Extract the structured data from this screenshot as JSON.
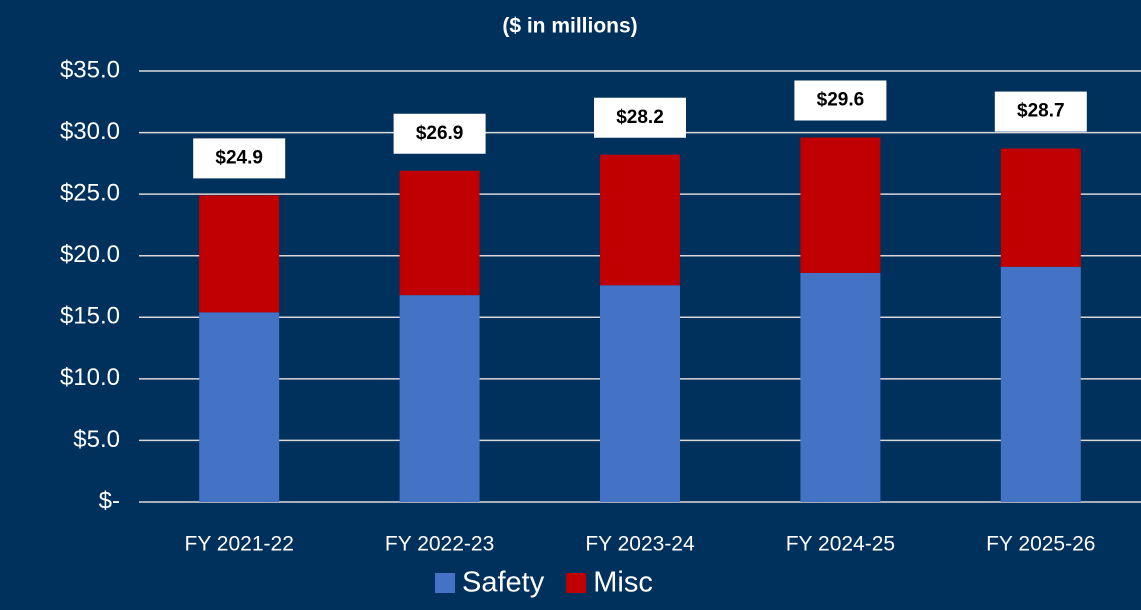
{
  "chart_data": {
    "type": "stacked_bar",
    "title": "($ in millions)",
    "categories": [
      "FY 2021-22",
      "FY 2022-23",
      "FY 2023-24",
      "FY 2024-25",
      "FY 2025-26"
    ],
    "series": [
      {
        "name": "Safety",
        "color": "#4472c4",
        "values": [
          15.4,
          16.8,
          17.6,
          18.6,
          19.1
        ]
      },
      {
        "name": "Misc",
        "color": "#c00000",
        "values": [
          9.5,
          10.1,
          10.6,
          11.0,
          9.6
        ]
      }
    ],
    "totals": [
      24.9,
      26.9,
      28.2,
      29.6,
      28.7
    ],
    "total_labels": [
      "$24.9",
      "$26.9",
      "$28.2",
      "$29.6",
      "$28.7"
    ],
    "ylim": [
      0,
      35
    ],
    "yticks": [
      {
        "value": 0,
        "label": "$-"
      },
      {
        "value": 5,
        "label": "$5.0"
      },
      {
        "value": 10,
        "label": "$10.0"
      },
      {
        "value": 15,
        "label": "$15.0"
      },
      {
        "value": 20,
        "label": "$20.0"
      },
      {
        "value": 25,
        "label": "$25.0"
      },
      {
        "value": 30,
        "label": "$30.0"
      },
      {
        "value": 35,
        "label": "$35.0"
      }
    ],
    "grid": true,
    "legend": "bottom"
  }
}
